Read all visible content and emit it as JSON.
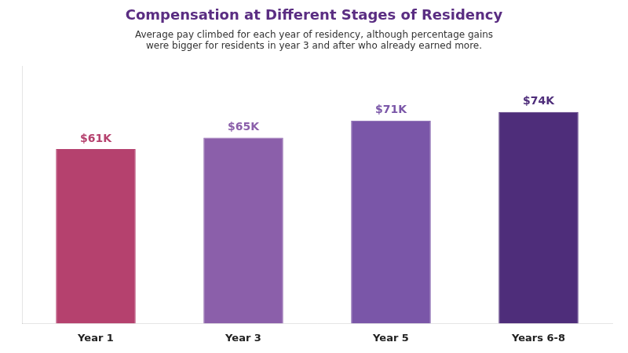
{
  "chart_data": {
    "type": "bar",
    "title": "Compensation at Different Stages of Residency",
    "subtitle": "Average pay climbed for each year of residency, although percentage gains\nwere bigger for residents in year 3 and after who already earned more.",
    "categories": [
      "Year 1",
      "Year 3",
      "Year 5",
      "Years 6-8"
    ],
    "values": [
      61,
      65,
      71,
      74
    ],
    "value_labels": [
      "$61K",
      "$65K",
      "$71K",
      "$74K"
    ],
    "data_labels": true,
    "colors": [
      "#b5416e",
      "#8b5faa",
      "#7a56a8",
      "#4e2d7a"
    ],
    "ylim": [
      0,
      90
    ],
    "tick_labels": "x",
    "grid": false
  }
}
